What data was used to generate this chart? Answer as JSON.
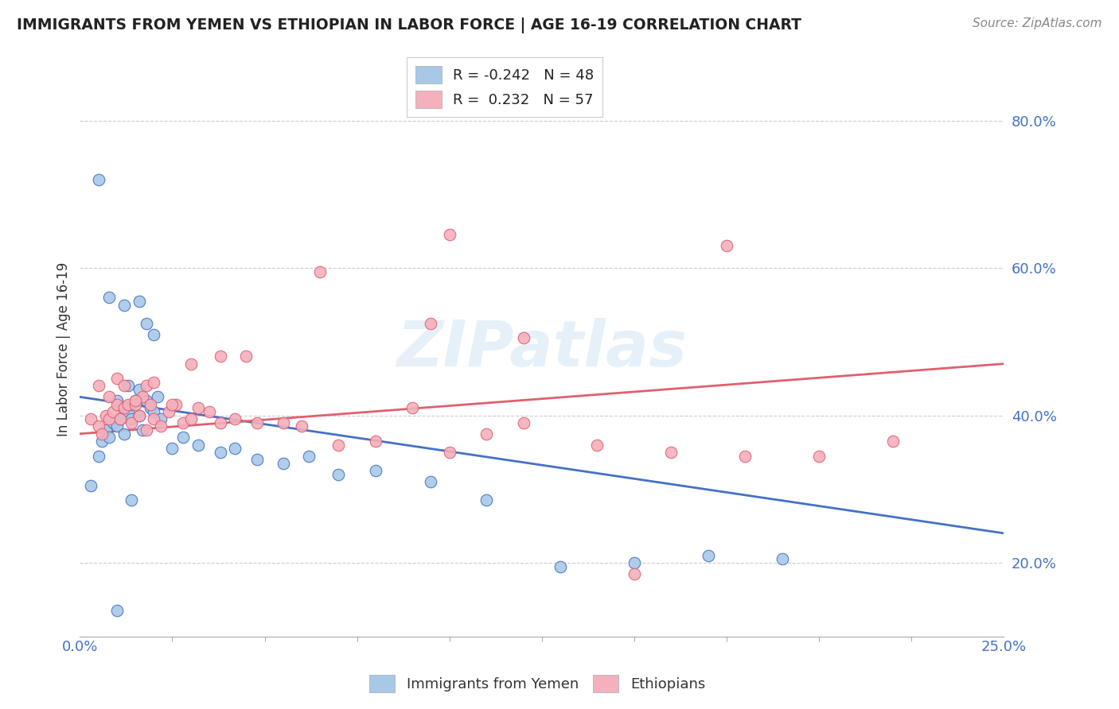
{
  "title": "IMMIGRANTS FROM YEMEN VS ETHIOPIAN IN LABOR FORCE | AGE 16-19 CORRELATION CHART",
  "source": "Source: ZipAtlas.com",
  "ylabel": "In Labor Force | Age 16-19",
  "legend_entry1": "R = -0.242   N = 48",
  "legend_entry2": "R =  0.232   N = 57",
  "legend_label1": "Immigrants from Yemen",
  "legend_label2": "Ethiopians",
  "color_yemen": "#a8c8e8",
  "color_ethiopia": "#f4b0bc",
  "color_line_yemen": "#4472c4",
  "color_line_ethiopia": "#e06070",
  "watermark": "ZIPatlas",
  "xlim": [
    0.0,
    0.25
  ],
  "ylim": [
    0.1,
    0.88
  ],
  "yemen_x": [
    0.003,
    0.005,
    0.006,
    0.007,
    0.008,
    0.009,
    0.01,
    0.01,
    0.011,
    0.012,
    0.012,
    0.013,
    0.013,
    0.014,
    0.014,
    0.015,
    0.016,
    0.016,
    0.017,
    0.018,
    0.019,
    0.02,
    0.021,
    0.022,
    0.025,
    0.028,
    0.032,
    0.038,
    0.042,
    0.048,
    0.055,
    0.062,
    0.07,
    0.08,
    0.095,
    0.11,
    0.13,
    0.15,
    0.17,
    0.19,
    0.005,
    0.008,
    0.012,
    0.016,
    0.018,
    0.02,
    0.014,
    0.01
  ],
  "yemen_y": [
    0.305,
    0.345,
    0.365,
    0.38,
    0.37,
    0.39,
    0.385,
    0.42,
    0.395,
    0.41,
    0.375,
    0.405,
    0.44,
    0.415,
    0.395,
    0.42,
    0.4,
    0.435,
    0.38,
    0.42,
    0.41,
    0.405,
    0.425,
    0.395,
    0.355,
    0.37,
    0.36,
    0.35,
    0.355,
    0.34,
    0.335,
    0.345,
    0.32,
    0.325,
    0.31,
    0.285,
    0.195,
    0.2,
    0.21,
    0.205,
    0.72,
    0.56,
    0.55,
    0.555,
    0.525,
    0.51,
    0.285,
    0.135
  ],
  "ethiopia_x": [
    0.003,
    0.005,
    0.006,
    0.007,
    0.008,
    0.009,
    0.01,
    0.011,
    0.012,
    0.013,
    0.014,
    0.015,
    0.016,
    0.017,
    0.018,
    0.019,
    0.02,
    0.022,
    0.024,
    0.026,
    0.028,
    0.03,
    0.032,
    0.035,
    0.038,
    0.042,
    0.048,
    0.055,
    0.06,
    0.07,
    0.08,
    0.09,
    0.1,
    0.11,
    0.12,
    0.14,
    0.16,
    0.18,
    0.2,
    0.22,
    0.005,
    0.008,
    0.01,
    0.012,
    0.015,
    0.018,
    0.02,
    0.025,
    0.03,
    0.038,
    0.175,
    0.15,
    0.1,
    0.12,
    0.095,
    0.065,
    0.045
  ],
  "ethiopia_y": [
    0.395,
    0.385,
    0.375,
    0.4,
    0.395,
    0.405,
    0.415,
    0.395,
    0.41,
    0.415,
    0.39,
    0.415,
    0.4,
    0.425,
    0.38,
    0.415,
    0.395,
    0.385,
    0.405,
    0.415,
    0.39,
    0.395,
    0.41,
    0.405,
    0.39,
    0.395,
    0.39,
    0.39,
    0.385,
    0.36,
    0.365,
    0.41,
    0.35,
    0.375,
    0.39,
    0.36,
    0.35,
    0.345,
    0.345,
    0.365,
    0.44,
    0.425,
    0.45,
    0.44,
    0.42,
    0.44,
    0.445,
    0.415,
    0.47,
    0.48,
    0.63,
    0.185,
    0.645,
    0.505,
    0.525,
    0.595,
    0.48
  ]
}
